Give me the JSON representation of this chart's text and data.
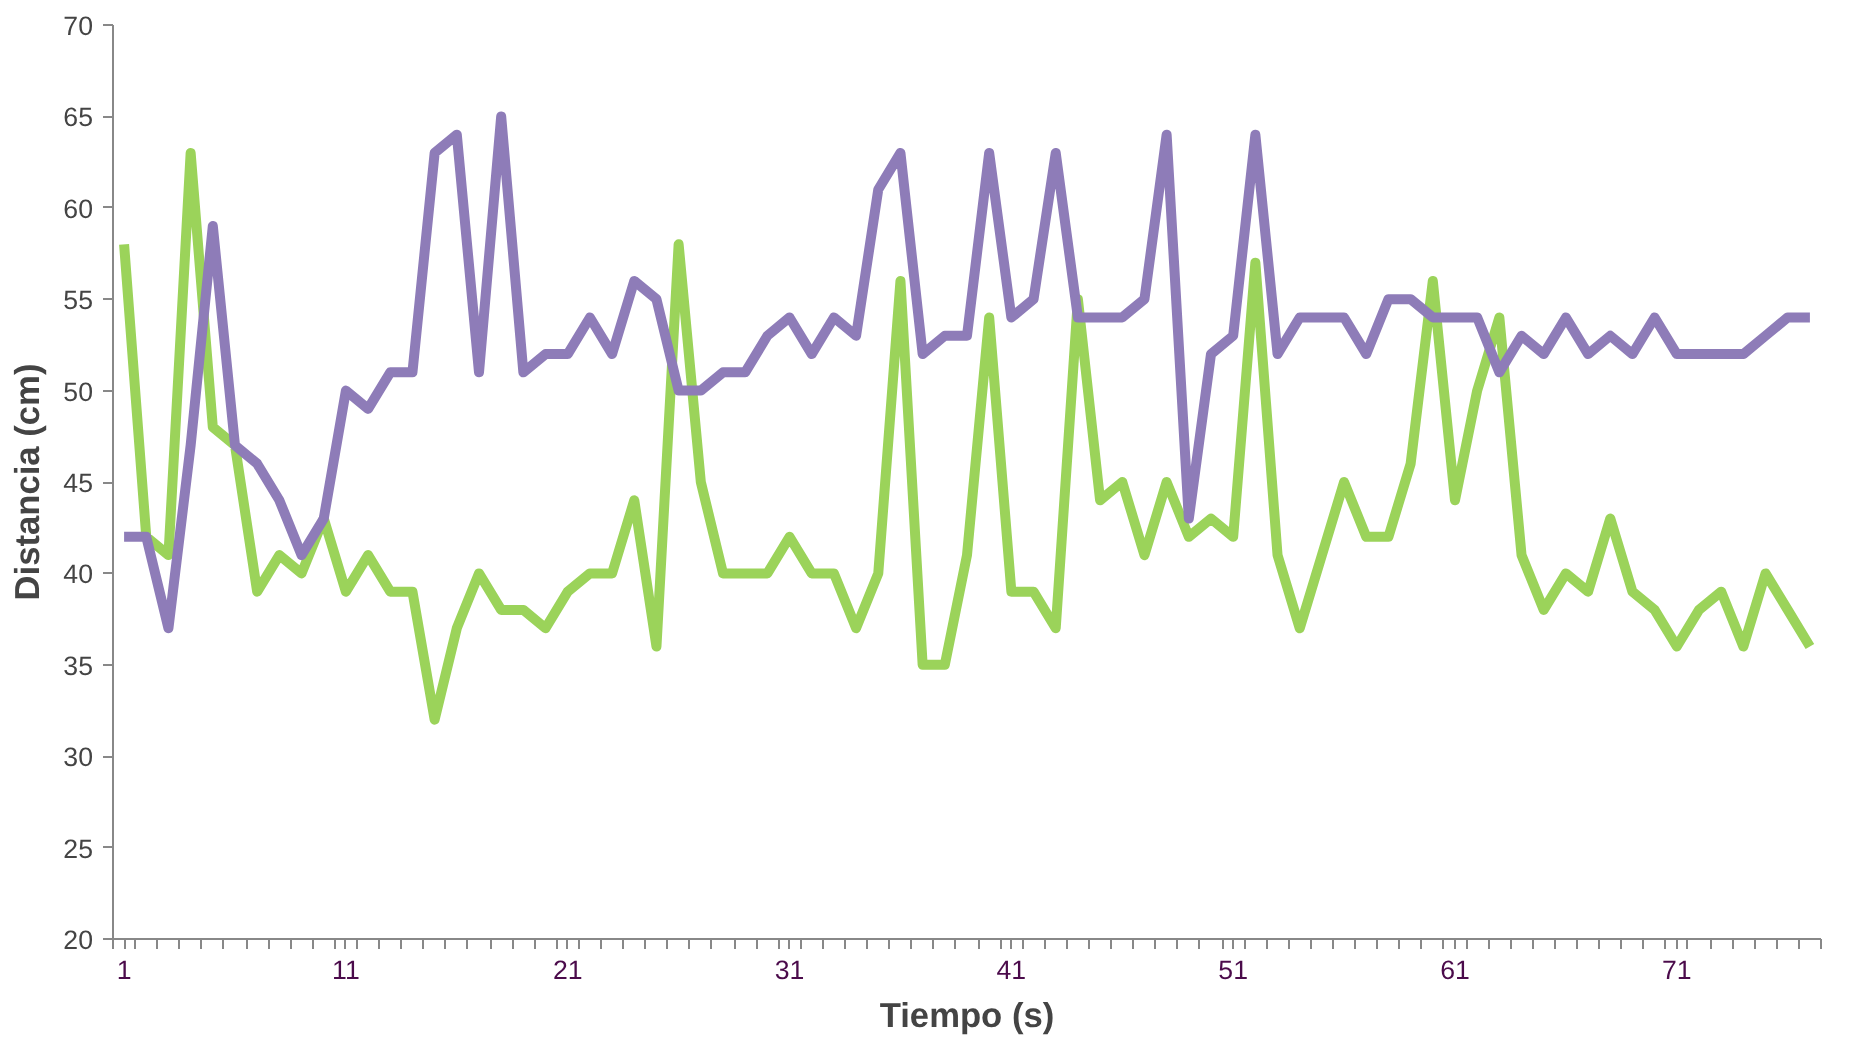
{
  "chart_data": {
    "type": "line",
    "xlabel": "Tiempo (s)",
    "ylabel": "Distancia (cm)",
    "x": [
      1,
      2,
      3,
      4,
      5,
      6,
      7,
      8,
      9,
      10,
      11,
      12,
      13,
      14,
      15,
      16,
      17,
      18,
      19,
      20,
      21,
      22,
      23,
      24,
      25,
      26,
      27,
      28,
      29,
      30,
      31,
      32,
      33,
      34,
      35,
      36,
      37,
      38,
      39,
      40,
      41,
      42,
      43,
      44,
      45,
      46,
      47,
      48,
      49,
      50,
      51,
      52,
      53,
      54,
      55,
      56,
      57,
      58,
      59,
      60,
      61,
      62,
      63,
      64,
      65,
      66,
      67,
      68,
      69,
      70,
      71,
      72,
      73,
      74,
      75,
      76,
      77
    ],
    "xlim": [
      0.5,
      77.5
    ],
    "xticks": [
      1,
      11,
      21,
      31,
      41,
      51,
      61,
      71,
      {
        "value": 0.5,
        "label": null
      },
      {
        "value": 1.5,
        "label": null
      },
      {
        "value": 2.5,
        "label": null
      },
      {
        "value": 3.5,
        "label": null
      },
      {
        "value": 4.5,
        "label": null
      },
      {
        "value": 5.5,
        "label": null
      },
      {
        "value": 6.5,
        "label": null
      },
      {
        "value": 7.5,
        "label": null
      },
      {
        "value": 8.5,
        "label": null
      },
      {
        "value": 9.5,
        "label": null
      },
      {
        "value": 10.5,
        "label": null
      },
      {
        "value": 11.5,
        "label": null
      },
      {
        "value": 12.5,
        "label": null
      },
      {
        "value": 13.5,
        "label": null
      },
      {
        "value": 14.5,
        "label": null
      },
      {
        "value": 15.5,
        "label": null
      },
      {
        "value": 16.5,
        "label": null
      },
      {
        "value": 17.5,
        "label": null
      },
      {
        "value": 18.5,
        "label": null
      },
      {
        "value": 19.5,
        "label": null
      },
      {
        "value": 20.5,
        "label": null
      },
      {
        "value": 21.5,
        "label": null
      },
      {
        "value": 22.5,
        "label": null
      },
      {
        "value": 23.5,
        "label": null
      },
      {
        "value": 24.5,
        "label": null
      },
      {
        "value": 25.5,
        "label": null
      },
      {
        "value": 26.5,
        "label": null
      },
      {
        "value": 27.5,
        "label": null
      },
      {
        "value": 28.5,
        "label": null
      },
      {
        "value": 29.5,
        "label": null
      },
      {
        "value": 30.5,
        "label": null
      },
      {
        "value": 31.5,
        "label": null
      },
      {
        "value": 32.5,
        "label": null
      },
      {
        "value": 33.5,
        "label": null
      },
      {
        "value": 34.5,
        "label": null
      },
      {
        "value": 35.5,
        "label": null
      },
      {
        "value": 36.5,
        "label": null
      },
      {
        "value": 37.5,
        "label": null
      },
      {
        "value": 38.5,
        "label": null
      },
      {
        "value": 39.5,
        "label": null
      },
      {
        "value": 40.5,
        "label": null
      },
      {
        "value": 41.5,
        "label": null
      },
      {
        "value": 42.5,
        "label": null
      },
      {
        "value": 43.5,
        "label": null
      },
      {
        "value": 44.5,
        "label": null
      },
      {
        "value": 45.5,
        "label": null
      },
      {
        "value": 46.5,
        "label": null
      },
      {
        "value": 47.5,
        "label": null
      },
      {
        "value": 48.5,
        "label": null
      },
      {
        "value": 49.5,
        "label": null
      },
      {
        "value": 50.5,
        "label": null
      },
      {
        "value": 51.5,
        "label": null
      },
      {
        "value": 52.5,
        "label": null
      },
      {
        "value": 53.5,
        "label": null
      },
      {
        "value": 54.5,
        "label": null
      },
      {
        "value": 55.5,
        "label": null
      },
      {
        "value": 56.5,
        "label": null
      },
      {
        "value": 57.5,
        "label": null
      },
      {
        "value": 58.5,
        "label": null
      },
      {
        "value": 59.5,
        "label": null
      },
      {
        "value": 60.5,
        "label": null
      },
      {
        "value": 61.5,
        "label": null
      },
      {
        "value": 62.5,
        "label": null
      },
      {
        "value": 63.5,
        "label": null
      },
      {
        "value": 64.5,
        "label": null
      },
      {
        "value": 65.5,
        "label": null
      },
      {
        "value": 66.5,
        "label": null
      },
      {
        "value": 67.5,
        "label": null
      },
      {
        "value": 68.5,
        "label": null
      },
      {
        "value": 69.5,
        "label": null
      },
      {
        "value": 70.5,
        "label": null
      },
      {
        "value": 71.5,
        "label": null
      },
      {
        "value": 72.5,
        "label": null
      },
      {
        "value": 73.5,
        "label": null
      },
      {
        "value": 74.5,
        "label": null
      },
      {
        "value": 75.5,
        "label": null
      },
      {
        "value": 76.5,
        "label": null
      },
      {
        "value": 77.5,
        "label": null
      }
    ],
    "ylim": [
      20,
      70
    ],
    "yticks": [
      20,
      25,
      30,
      35,
      40,
      45,
      50,
      55,
      60,
      65,
      70
    ],
    "grid": false,
    "line_style": "solid",
    "marker": "none",
    "series": [
      {
        "color": "#9bd35a",
        "values": [
          58,
          42,
          41,
          63,
          48,
          47,
          39,
          41,
          40,
          43,
          39,
          41,
          39,
          39,
          32,
          37,
          40,
          38,
          38,
          37,
          39,
          40,
          40,
          44,
          36,
          58,
          45,
          40,
          40,
          40,
          42,
          40,
          40,
          37,
          40,
          56,
          35,
          35,
          41,
          54,
          39,
          39,
          37,
          55,
          44,
          45,
          41,
          45,
          42,
          43,
          42,
          57,
          41,
          37,
          41,
          45,
          42,
          42,
          46,
          56,
          44,
          50,
          54,
          41,
          38,
          40,
          39,
          43,
          39,
          38,
          36,
          38,
          39,
          36,
          40,
          38,
          36
        ]
      },
      {
        "color": "#8e7cb8",
        "values": [
          42,
          42,
          37,
          47,
          59,
          47,
          46,
          44,
          41,
          43,
          50,
          49,
          51,
          51,
          63,
          64,
          51,
          65,
          51,
          52,
          52,
          54,
          52,
          56,
          55,
          50,
          50,
          51,
          51,
          53,
          54,
          52,
          54,
          53,
          61,
          63,
          52,
          53,
          53,
          63,
          54,
          55,
          63,
          54,
          54,
          54,
          55,
          64,
          43,
          52,
          53,
          64,
          52,
          54,
          54,
          54,
          52,
          55,
          55,
          54,
          54,
          54,
          51,
          53,
          52,
          54,
          52,
          53,
          52,
          54,
          52,
          52,
          52,
          52,
          53,
          54,
          54
        ]
      }
    ]
  }
}
